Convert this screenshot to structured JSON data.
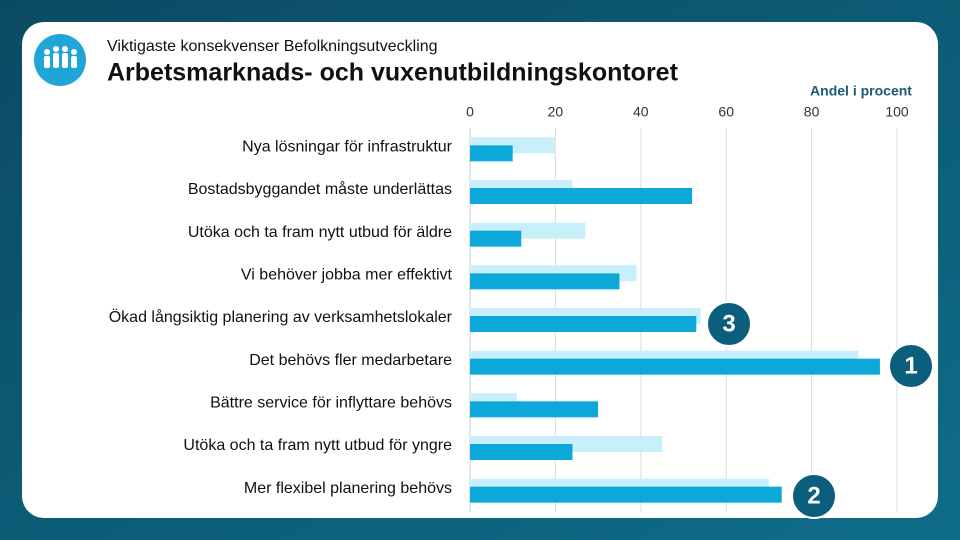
{
  "chart_data": {
    "type": "bar",
    "orientation": "horizontal",
    "title": "Arbetsmarknads- och vuxenutbildningskontoret",
    "subtitle": "Viktigaste konsekvenser Befolkningsutveckling",
    "x_label": "Andel i procent",
    "categories": [
      "Nya lösningar för infrastruktur",
      "Bostadsbyggandet måste underlättas",
      "Utöka och ta fram nytt utbud för äldre",
      "Vi behöver jobba mer effektivt",
      "Ökad långsiktig planering av verksamhetslokaler",
      "Det behövs fler medarbetare",
      "Bättre service för inflyttare behövs",
      "Utöka och ta fram nytt utbud för yngre",
      "Mer flexibel planering behövs"
    ],
    "series": [
      {
        "color": "#c8f0fb",
        "values": [
          20,
          24,
          27,
          39,
          54,
          91,
          11,
          45,
          70
        ]
      },
      {
        "color": "#0ba8d9",
        "values": [
          10,
          52,
          12,
          35,
          53,
          96,
          30,
          24,
          73
        ]
      }
    ],
    "xlim": [
      0,
      100
    ],
    "xticks": [
      0,
      20,
      40,
      60,
      80,
      100
    ],
    "grid": true,
    "badges": [
      "3",
      "1",
      "2"
    ]
  }
}
